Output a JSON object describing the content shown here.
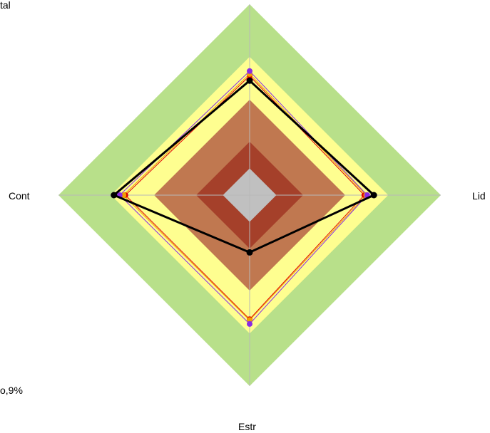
{
  "chart_data": {
    "type": "radar",
    "axes": [
      "Lid",
      "Estr",
      "Cont",
      "tal"
    ],
    "background_bands": [
      {
        "level": 0.28,
        "color": "#c0c0c0"
      },
      {
        "level": 0.56,
        "color": "#a5402a"
      },
      {
        "level": 1.0,
        "color": "#c07850"
      },
      {
        "level": 1.45,
        "color": "#fefe90"
      },
      {
        "level": 2.0,
        "color": "#b8e08a"
      }
    ],
    "series": [
      {
        "color": "#000000",
        "values": [
          1.3,
          0.6,
          1.42,
          1.2
        ]
      },
      {
        "color": "#e00000",
        "values": [
          1.2,
          1.3,
          1.3,
          1.25
        ]
      },
      {
        "color": "#f0a000",
        "values": [
          1.22,
          1.31,
          1.32,
          1.27
        ]
      },
      {
        "color": "#8a2be2",
        "values": [
          1.23,
          1.35,
          1.36,
          1.3
        ]
      }
    ],
    "corner_labels": {
      "top_left": "tal",
      "bottom_left": "o,9%"
    },
    "grid": true
  }
}
